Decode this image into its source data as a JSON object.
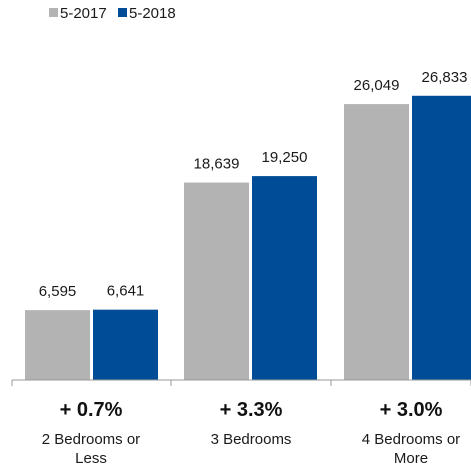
{
  "chart_data": {
    "type": "bar",
    "categories": [
      [
        "2 Bedrooms or",
        "Less"
      ],
      [
        "3 Bedrooms"
      ],
      [
        "4 Bedrooms or",
        "More"
      ]
    ],
    "series": [
      {
        "name": "5-2017",
        "color": "#b3b3b3",
        "values": [
          6595,
          18639,
          26049
        ],
        "labels": [
          "6,595",
          "18,639",
          "26,049"
        ]
      },
      {
        "name": "5-2018",
        "color": "#004c97",
        "values": [
          6641,
          19250,
          26833
        ],
        "labels": [
          "6,641",
          "19,250",
          "26,833"
        ]
      }
    ],
    "changes": [
      "+ 0.7%",
      "+ 3.3%",
      "+ 3.0%"
    ],
    "legend_position": "top-left",
    "ylim": [
      0,
      27000
    ],
    "grid": false,
    "axis_color": "#999999"
  }
}
